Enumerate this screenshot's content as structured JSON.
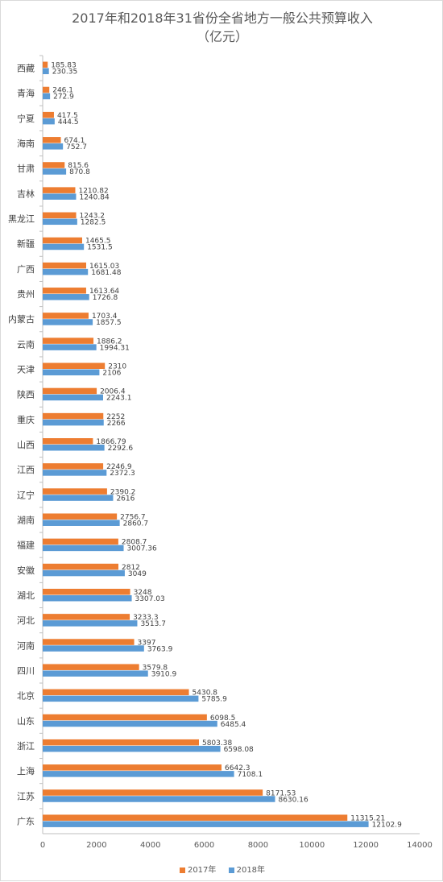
{
  "chart_data": {
    "type": "bar",
    "orientation": "horizontal",
    "title": "2017年和2018年31省份全省地方一般公共预算收入",
    "subtitle": "（亿元）",
    "categories": [
      "西藏",
      "青海",
      "宁夏",
      "海南",
      "甘肃",
      "吉林",
      "黑龙江",
      "新疆",
      "广西",
      "贵州",
      "内蒙古",
      "云南",
      "天津",
      "陕西",
      "重庆",
      "山西",
      "江西",
      "辽宁",
      "湖南",
      "福建",
      "安徽",
      "湖北",
      "河北",
      "河南",
      "四川",
      "北京",
      "山东",
      "浙江",
      "上海",
      "江苏",
      "广东"
    ],
    "series": [
      {
        "name": "2017年",
        "color": "#ed7d31",
        "values": [
          185.83,
          246.1,
          417.5,
          674.1,
          815.6,
          1210.82,
          1243.2,
          1465.5,
          1615.03,
          1613.64,
          1703.4,
          1886.2,
          2310,
          2006.4,
          2252,
          1866.79,
          2246.9,
          2390.2,
          2756.7,
          2808.7,
          2812,
          3248,
          3233.3,
          3397,
          3579.8,
          5430.8,
          6098.5,
          5803.38,
          6642.3,
          8171.53,
          11315.21
        ],
        "labels": [
          "185.83",
          "246.1",
          "417.5",
          "674.1",
          "815.6",
          "1210.82",
          "1243.2",
          "1465.5",
          "1615.03",
          "1613.64",
          "1703.4",
          "1886.2",
          "2310",
          "2006.4",
          "2252",
          "1866.79",
          "2246.9",
          "2390.2",
          "2756.7",
          "2808.7",
          "2812",
          "3248",
          "3233.3",
          "3397",
          "3579.8",
          "5430.8",
          "6098.5",
          "5803.38",
          "6642.3",
          "8171.53",
          "11315.21"
        ]
      },
      {
        "name": "2018年",
        "color": "#5b9bd5",
        "values": [
          230.35,
          272.9,
          444.5,
          752.7,
          870.8,
          1240.84,
          1282.5,
          1531.5,
          1681.48,
          1726.8,
          1857.5,
          1994.31,
          2106,
          2243.1,
          2266,
          2292.6,
          2372.3,
          2616,
          2860.7,
          3007.36,
          3049,
          3307.03,
          3513.7,
          3763.9,
          3910.9,
          5785.9,
          6485.4,
          6598.08,
          7108.1,
          8630.16,
          12102.9
        ],
        "labels": [
          "230.35",
          "272.9",
          "444.5",
          "752.7",
          "870.8",
          "1240.84",
          "1282.5",
          "1531.5",
          "1681.48",
          "1726.8",
          "1857.5",
          "1994.31",
          "2106",
          "2243.1",
          "2266",
          "2292.6",
          "2372.3",
          "2616",
          "2860.7",
          "3007.36",
          "3049",
          "3307.03",
          "3513.7",
          "3763.9",
          "3910.9",
          "5785.9",
          "6485.4",
          "6598.08",
          "7108.1",
          "8630.16",
          "12102.9"
        ]
      }
    ],
    "xlim": [
      0,
      14000
    ],
    "xticks": [
      "0",
      "2000",
      "4000",
      "6000",
      "8000",
      "10000",
      "12000",
      "14000"
    ],
    "grid": false,
    "legend_position": "bottom"
  }
}
